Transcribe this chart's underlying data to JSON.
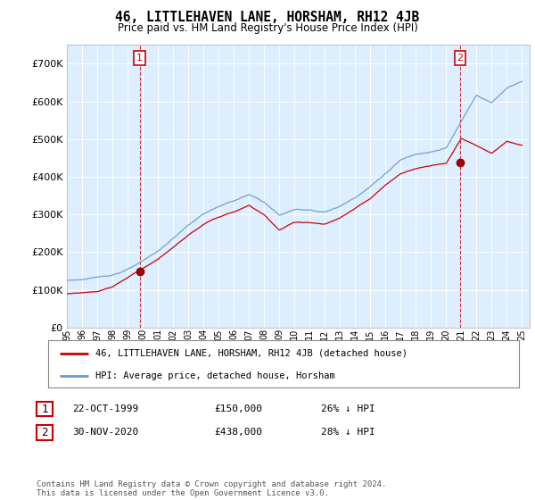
{
  "title": "46, LITTLEHAVEN LANE, HORSHAM, RH12 4JB",
  "subtitle": "Price paid vs. HM Land Registry's House Price Index (HPI)",
  "background_color": "#ffffff",
  "plot_bg_color": "#ddeeff",
  "grid_color": "#ffffff",
  "hpi_color": "#6699cc",
  "price_color": "#cc0000",
  "legend_entries": [
    "46, LITTLEHAVEN LANE, HORSHAM, RH12 4JB (detached house)",
    "HPI: Average price, detached house, Horsham"
  ],
  "table_rows": [
    [
      "1",
      "22-OCT-1999",
      "£150,000",
      "26% ↓ HPI"
    ],
    [
      "2",
      "30-NOV-2020",
      "£438,000",
      "28% ↓ HPI"
    ]
  ],
  "footer": "Contains HM Land Registry data © Crown copyright and database right 2024.\nThis data is licensed under the Open Government Licence v3.0.",
  "ylim": [
    0,
    750000
  ],
  "yticks": [
    0,
    100000,
    200000,
    300000,
    400000,
    500000,
    600000,
    700000
  ],
  "xmin": 1995.0,
  "xmax": 2025.5,
  "marker1_x": 1999.79,
  "marker1_price": 150000,
  "marker2_x": 2020.92,
  "marker2_price": 438000
}
